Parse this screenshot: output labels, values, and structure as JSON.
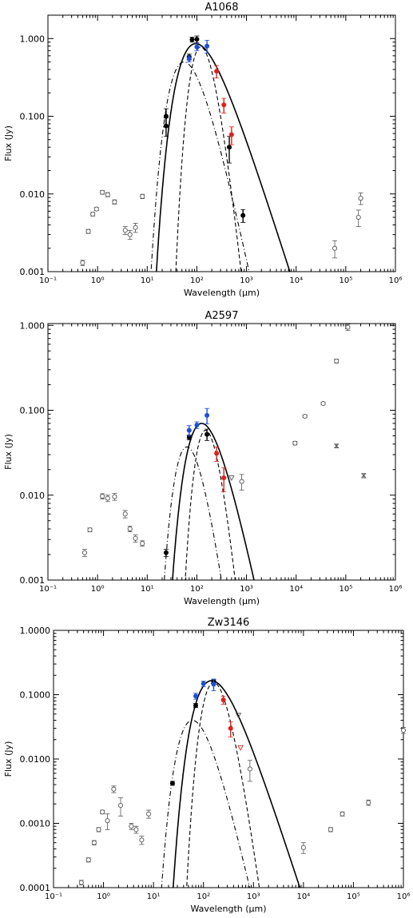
{
  "chart_data": [
    {
      "type": "scatter",
      "title": "A1068",
      "xlabel": "Wavelength (μm)",
      "ylabel": "Flux (Jy)",
      "xscale": "log",
      "yscale": "log",
      "xlim": [
        0.1,
        1000000
      ],
      "ylim": [
        0.001,
        2.0
      ],
      "xticks": [
        "10⁻¹",
        "10⁰",
        "10¹",
        "10²",
        "10³",
        "10⁴",
        "10⁵",
        "10⁶"
      ],
      "yticks": [
        {
          "v": 0.001,
          "t": "0.001"
        },
        {
          "v": 0.01,
          "t": "0.010"
        },
        {
          "v": 0.1,
          "t": "0.100"
        },
        {
          "v": 1.0,
          "t": "1.000"
        }
      ],
      "series": [
        {
          "style": "open",
          "color": "#555555",
          "points": [
            [
              0.5,
              0.0013,
              0.0001
            ],
            [
              0.65,
              0.0033,
              0.0002
            ],
            [
              0.8,
              0.0055,
              0.0003
            ],
            [
              0.95,
              0.0064,
              0.0003
            ],
            [
              1.25,
              0.0105,
              0.0006
            ],
            [
              1.6,
              0.0098,
              0.0006
            ],
            [
              2.2,
              0.0079,
              0.0005
            ],
            [
              3.6,
              0.0034,
              0.0004
            ],
            [
              4.5,
              0.003,
              0.0004
            ],
            [
              5.8,
              0.0037,
              0.0005
            ],
            [
              8.0,
              0.0093,
              0.0006
            ],
            [
              60000,
              0.002,
              0.0005
            ],
            [
              180000,
              0.005,
              0.0012
            ],
            [
              200000,
              0.0088,
              0.0015
            ]
          ]
        },
        {
          "style": "filled",
          "color": "#000000",
          "points": [
            [
              24,
              0.1,
              0.025
            ],
            [
              24,
              0.075,
              0.02
            ],
            [
              70,
              0.58,
              0.05
            ],
            [
              80,
              0.97,
              0.07
            ],
            [
              100,
              0.98,
              0.1
            ],
            [
              450,
              0.04,
              0.015
            ],
            [
              850,
              0.0053,
              0.001
            ]
          ]
        },
        {
          "style": "filled",
          "color": "#1f4fd8",
          "points": [
            [
              70,
              0.55,
              0.05
            ],
            [
              100,
              0.78,
              0.08
            ],
            [
              160,
              0.8,
              0.15
            ]
          ]
        },
        {
          "style": "filled",
          "color": "#e0201e",
          "points": [
            [
              250,
              0.38,
              0.07
            ],
            [
              350,
              0.14,
              0.03
            ],
            [
              500,
              0.058,
              0.015
            ]
          ]
        }
      ],
      "curves": [
        {
          "kind": "dotdash",
          "peak_lambda": 55,
          "peak_flux": 0.5,
          "alpha": 3.0
        },
        {
          "kind": "dash",
          "peak_lambda": 120,
          "peak_flux": 0.78,
          "alpha": 6.5
        },
        {
          "kind": "solid",
          "peak_lambda": 95,
          "peak_flux": 0.86,
          "alpha": 2.0
        }
      ]
    },
    {
      "type": "scatter",
      "title": "A2597",
      "xlabel": "Wavelength (μm)",
      "ylabel": "Flux (Jy)",
      "xscale": "log",
      "yscale": "log",
      "xlim": [
        0.1,
        1000000
      ],
      "ylim": [
        0.001,
        1.05
      ],
      "xticks": [
        "10⁻¹",
        "10⁰",
        "10¹",
        "10²",
        "10³",
        "10⁴",
        "10⁵",
        "10⁶"
      ],
      "yticks": [
        {
          "v": 0.001,
          "t": "0.001"
        },
        {
          "v": 0.01,
          "t": "0.010"
        },
        {
          "v": 0.1,
          "t": "0.100"
        },
        {
          "v": 1.0,
          "t": "1.000"
        }
      ],
      "series": [
        {
          "style": "open",
          "color": "#555555",
          "points": [
            [
              0.55,
              0.0021,
              0.0002
            ],
            [
              0.7,
              0.0039,
              0.0002
            ],
            [
              1.25,
              0.0097,
              0.0007
            ],
            [
              1.6,
              0.0092,
              0.0008
            ],
            [
              2.2,
              0.0096,
              0.0009
            ],
            [
              3.6,
              0.006,
              0.0006
            ],
            [
              4.5,
              0.004,
              0.0003
            ],
            [
              5.8,
              0.0031,
              0.0003
            ],
            [
              8.0,
              0.0027,
              0.0002
            ],
            [
              800,
              0.0145,
              0.003
            ],
            [
              9500,
              0.041,
              0.002
            ],
            [
              15000,
              0.085,
              0.003
            ],
            [
              35000,
              0.12,
              0.004
            ],
            [
              65000,
              0.38,
              0.02
            ],
            [
              110000,
              0.95,
              0.08
            ]
          ]
        },
        {
          "style": "x",
          "color": "#555555",
          "points": [
            [
              65000,
              0.038,
              0.002
            ],
            [
              230000,
              0.017,
              0.001
            ]
          ]
        },
        {
          "style": "tri",
          "color": "#555555",
          "points": [
            [
              500,
              0.016,
              0
            ]
          ]
        },
        {
          "style": "filled",
          "color": "#000000",
          "points": [
            [
              24,
              0.0021,
              0.0002
            ],
            [
              70,
              0.048,
              0.003
            ],
            [
              160,
              0.052,
              0.008
            ]
          ]
        },
        {
          "style": "filled",
          "color": "#1f4fd8",
          "points": [
            [
              70,
              0.058,
              0.008
            ],
            [
              100,
              0.067,
              0.006
            ],
            [
              160,
              0.087,
              0.018
            ]
          ]
        },
        {
          "style": "filled",
          "color": "#e0201e",
          "points": [
            [
              250,
              0.031,
              0.006
            ],
            [
              350,
              0.016,
              0.005
            ]
          ]
        }
      ],
      "curves": [
        {
          "kind": "dotdash",
          "peak_lambda": 63,
          "peak_flux": 0.037,
          "alpha": 4.5
        },
        {
          "kind": "dash",
          "peak_lambda": 150,
          "peak_flux": 0.058,
          "alpha": 6.5
        },
        {
          "kind": "solid",
          "peak_lambda": 125,
          "peak_flux": 0.07,
          "alpha": 2.8
        }
      ]
    },
    {
      "type": "scatter",
      "title": "Zw3146",
      "xlabel": "Wavelength (μm)",
      "ylabel": "Flux (Jy)",
      "xscale": "log",
      "yscale": "log",
      "xlim": [
        0.1,
        1000000
      ],
      "ylim": [
        0.0001,
        1.0
      ],
      "xticks": [
        "10⁻¹",
        "10⁰",
        "10¹",
        "10²",
        "10³",
        "10⁴",
        "10⁵",
        "10⁶"
      ],
      "yticks": [
        {
          "v": 0.0001,
          "t": "0.0001"
        },
        {
          "v": 0.001,
          "t": "0.0010"
        },
        {
          "v": 0.01,
          "t": "0.0100"
        },
        {
          "v": 0.1,
          "t": "0.1000"
        },
        {
          "v": 1.0,
          "t": "1.0000"
        }
      ],
      "series": [
        {
          "style": "open",
          "color": "#555555",
          "points": [
            [
              0.36,
              0.00012,
              1e-05
            ],
            [
              0.5,
              0.00027,
              2e-05
            ],
            [
              0.65,
              0.0005,
              4e-05
            ],
            [
              0.8,
              0.0008,
              6e-05
            ],
            [
              0.95,
              0.0015,
              0.0001
            ],
            [
              1.2,
              0.0011,
              0.0003
            ],
            [
              1.6,
              0.0034,
              0.0004
            ],
            [
              2.2,
              0.0019,
              0.0006
            ],
            [
              3.6,
              0.0009,
              0.0001
            ],
            [
              4.5,
              0.0008,
              0.0001
            ],
            [
              5.8,
              0.00055,
              8e-05
            ],
            [
              8.0,
              0.0014,
              0.0002
            ],
            [
              850,
              0.007,
              0.0025
            ],
            [
              10000,
              0.00042,
              8e-05
            ],
            [
              35000,
              0.0008,
              6e-05
            ],
            [
              60000,
              0.0014,
              0.0001
            ],
            [
              200000,
              0.0021,
              0.0002
            ],
            [
              1000000,
              0.028,
              0.003
            ]
          ]
        },
        {
          "style": "tri",
          "color": "#555555",
          "points": [
            [
              500,
              0.048,
              0
            ]
          ]
        },
        {
          "style": "tri",
          "color": "#e0201e",
          "points": [
            [
              550,
              0.015,
              0
            ]
          ]
        },
        {
          "style": "filled",
          "color": "#000000",
          "points": [
            [
              24,
              0.0042,
              0.0003
            ],
            [
              70,
              0.068,
              0.005
            ],
            [
              160,
              0.16,
              0.01
            ]
          ]
        },
        {
          "style": "filled",
          "color": "#1f4fd8",
          "points": [
            [
              70,
              0.095,
              0.01
            ],
            [
              100,
              0.148,
              0.015
            ],
            [
              160,
              0.145,
              0.03
            ]
          ]
        },
        {
          "style": "filled",
          "color": "#e0201e",
          "points": [
            [
              250,
              0.083,
              0.012
            ],
            [
              350,
              0.03,
              0.008
            ]
          ]
        }
      ],
      "curves": [
        {
          "kind": "dotdash",
          "peak_lambda": 60,
          "peak_flux": 0.04,
          "alpha": 3.5
        },
        {
          "kind": "dash",
          "peak_lambda": 160,
          "peak_flux": 0.155,
          "alpha": 6.0
        },
        {
          "kind": "solid",
          "peak_lambda": 145,
          "peak_flux": 0.165,
          "alpha": 2.4
        }
      ]
    }
  ]
}
